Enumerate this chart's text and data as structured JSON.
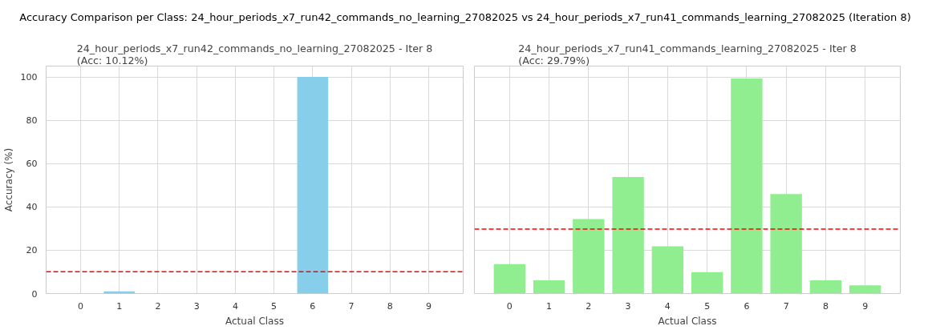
{
  "chart_data": [
    {
      "type": "bar",
      "title": "24_hour_periods_x7_run42_commands_no_learning_27082025 - Iter 8\n(Acc: 10.12%)",
      "annotations": [
        "Accuracy Comparison per Class: 24_hour_periods_x7_run42_commands_no_learning_27082025 vs 24_hour_periods_x7_run41_commands_learning_27082025 (Iteration 8)"
      ],
      "xlabel": "Actual Class",
      "ylabel": "Accuracy (%)",
      "categories": [
        "0",
        "1",
        "2",
        "3",
        "4",
        "5",
        "6",
        "7",
        "8",
        "9"
      ],
      "values": [
        0,
        1,
        0,
        0,
        0,
        0,
        100,
        0,
        0,
        0
      ],
      "color": "#87ceeb",
      "ylim": [
        0,
        105
      ],
      "yticks": [
        0,
        20,
        40,
        60,
        80,
        100
      ],
      "grid": true,
      "ref_lines": [
        {
          "axis": "y",
          "value": 10.12,
          "color": "#ff0000",
          "line_style": "dashed"
        }
      ]
    },
    {
      "type": "bar",
      "title": "24_hour_periods_x7_run41_commands_learning_27082025 - Iter 8\n(Acc: 29.79%)",
      "xlabel": "Actual Class",
      "categories": [
        "0",
        "1",
        "2",
        "3",
        "4",
        "5",
        "6",
        "7",
        "8",
        "9"
      ],
      "values": [
        13.6,
        6.1,
        34.4,
        53.8,
        21.8,
        9.9,
        99.3,
        45.9,
        6.1,
        3.8
      ],
      "color": "#90ee90",
      "ylim": [
        0,
        105
      ],
      "yticks": [
        0,
        20,
        40,
        60,
        80,
        100
      ],
      "grid": true,
      "tick_labels": "x",
      "ref_lines": [
        {
          "axis": "y",
          "value": 29.79,
          "color": "#ff0000",
          "line_style": "dashed"
        }
      ]
    }
  ]
}
